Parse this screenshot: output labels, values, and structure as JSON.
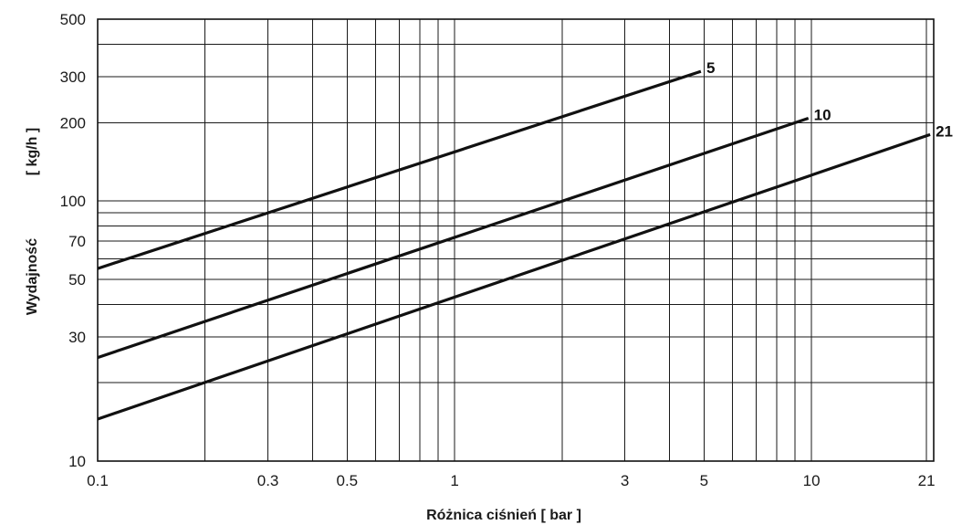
{
  "chart_data": {
    "type": "line",
    "x_scale": "log",
    "y_scale": "log",
    "xlim": [
      0.1,
      22
    ],
    "ylim": [
      10,
      500
    ],
    "xlabel": "Różnica ciśnień [ bar ]",
    "ylabel": "Wydajność",
    "ylabel_unit": "[ kg/h ]",
    "x_ticks": [
      {
        "value": 0.1,
        "label": "0.1"
      },
      {
        "value": 0.3,
        "label": "0.3"
      },
      {
        "value": 0.5,
        "label": "0.5"
      },
      {
        "value": 1,
        "label": "1"
      },
      {
        "value": 3,
        "label": "3"
      },
      {
        "value": 5,
        "label": "5"
      },
      {
        "value": 10,
        "label": "10"
      },
      {
        "value": 21,
        "label": "21"
      }
    ],
    "y_ticks": [
      {
        "value": 10,
        "label": "10"
      },
      {
        "value": 30,
        "label": "30"
      },
      {
        "value": 50,
        "label": "50"
      },
      {
        "value": 70,
        "label": "70"
      },
      {
        "value": 100,
        "label": "100"
      },
      {
        "value": 200,
        "label": "200"
      },
      {
        "value": 300,
        "label": "300"
      },
      {
        "value": 500,
        "label": "500"
      }
    ],
    "x_gridlines": [
      0.2,
      0.3,
      0.4,
      0.5,
      0.6,
      0.7,
      0.8,
      0.9,
      1,
      2,
      3,
      4,
      5,
      6,
      7,
      8,
      9,
      10,
      21
    ],
    "y_gridlines": [
      20,
      30,
      40,
      50,
      60,
      70,
      80,
      90,
      100,
      200,
      300,
      400
    ],
    "grid": true,
    "series": [
      {
        "name": "5",
        "x": [
          0.1,
          4.9
        ],
        "y": [
          55,
          315
        ]
      },
      {
        "name": "10",
        "x": [
          0.1,
          9.8
        ],
        "y": [
          25,
          208
        ]
      },
      {
        "name": "21",
        "x": [
          0.1,
          21.5
        ],
        "y": [
          14.5,
          180
        ]
      }
    ]
  }
}
